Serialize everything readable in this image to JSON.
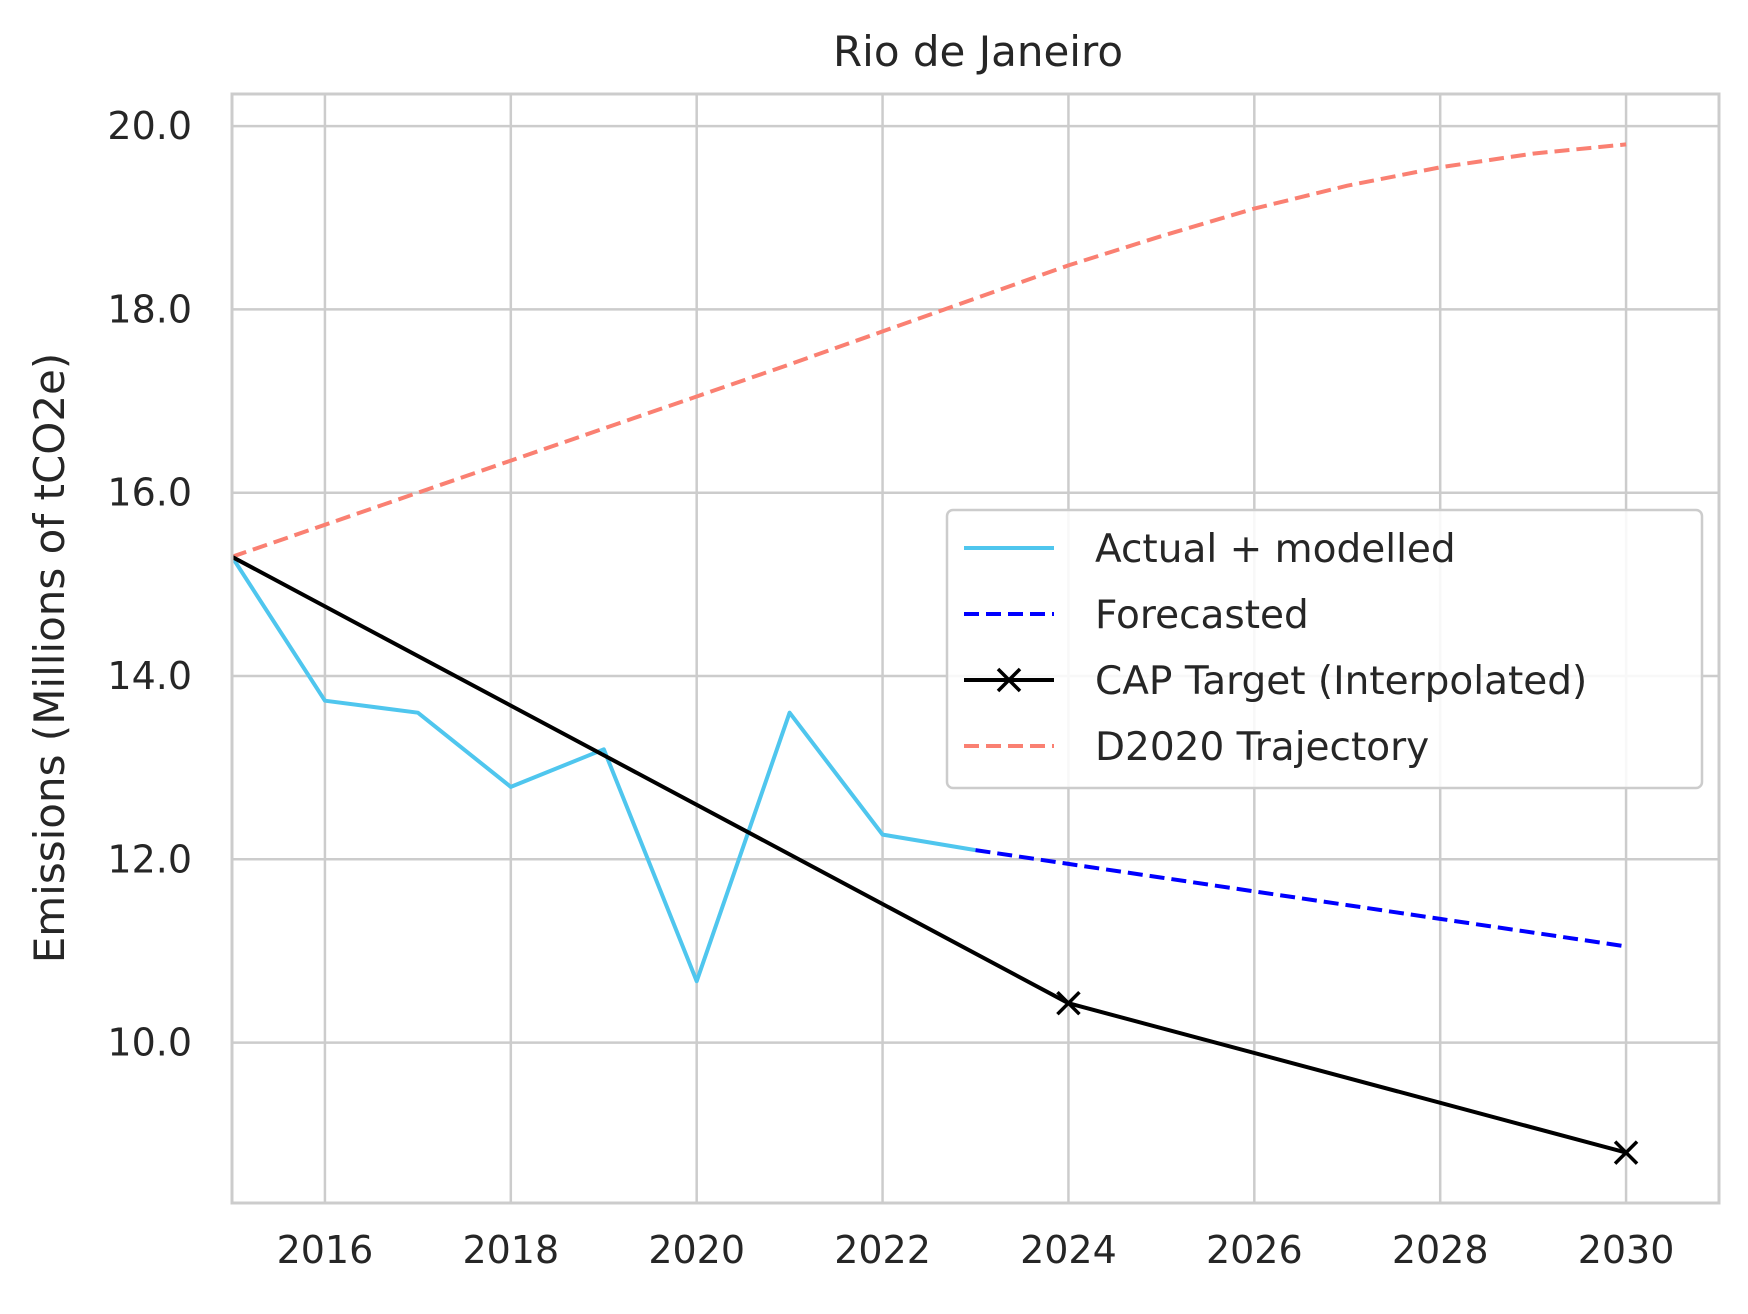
{
  "chart_data": {
    "type": "line",
    "title": "Rio de Janeiro",
    "xlabel": "",
    "ylabel": "Emissions (Millions of tCO2e)",
    "xlim": [
      2015,
      2031
    ],
    "ylim": [
      8.25,
      20.35
    ],
    "xticks": [
      2016,
      2018,
      2020,
      2022,
      2024,
      2026,
      2028,
      2030
    ],
    "yticks": [
      10.0,
      12.0,
      14.0,
      16.0,
      18.0,
      20.0
    ],
    "xtick_labels": [
      "2016",
      "2018",
      "2020",
      "2022",
      "2024",
      "2026",
      "2028",
      "2030"
    ],
    "ytick_labels": [
      "10.0",
      "12.0",
      "14.0",
      "16.0",
      "18.0",
      "20.0"
    ],
    "grid": true,
    "legend_position": "center-right",
    "series": [
      {
        "name": "Actual + modelled",
        "color": "#4fc6ee",
        "style": "solid",
        "marker": "none",
        "x": [
          2015,
          2016,
          2017,
          2018,
          2019,
          2020,
          2021,
          2022,
          2023
        ],
        "y": [
          15.3,
          13.73,
          13.6,
          12.79,
          13.2,
          10.67,
          13.6,
          12.27,
          12.1
        ]
      },
      {
        "name": "Forecasted",
        "color": "#0000ff",
        "style": "dashed",
        "marker": "none",
        "x": [
          2023,
          2024,
          2025,
          2026,
          2027,
          2028,
          2029,
          2030
        ],
        "y": [
          12.1,
          11.95,
          11.8,
          11.65,
          11.5,
          11.35,
          11.2,
          11.05
        ]
      },
      {
        "name": "CAP Target (Interpolated)",
        "color": "#000000",
        "style": "solid",
        "marker": "x",
        "marker_at": [
          2024,
          2030
        ],
        "x": [
          2015,
          2024,
          2030
        ],
        "y": [
          15.3,
          10.43,
          8.8
        ]
      },
      {
        "name": "D2020 Trajectory",
        "color": "#fa8072",
        "style": "dashed",
        "marker": "none",
        "x": [
          2015,
          2016,
          2017,
          2018,
          2019,
          2020,
          2021,
          2022,
          2023,
          2024,
          2025,
          2026,
          2027,
          2028,
          2029,
          2030
        ],
        "y": [
          15.3,
          15.65,
          16.0,
          16.35,
          16.7,
          17.05,
          17.4,
          17.76,
          18.12,
          18.48,
          18.8,
          19.1,
          19.35,
          19.55,
          19.7,
          19.8
        ]
      }
    ]
  }
}
